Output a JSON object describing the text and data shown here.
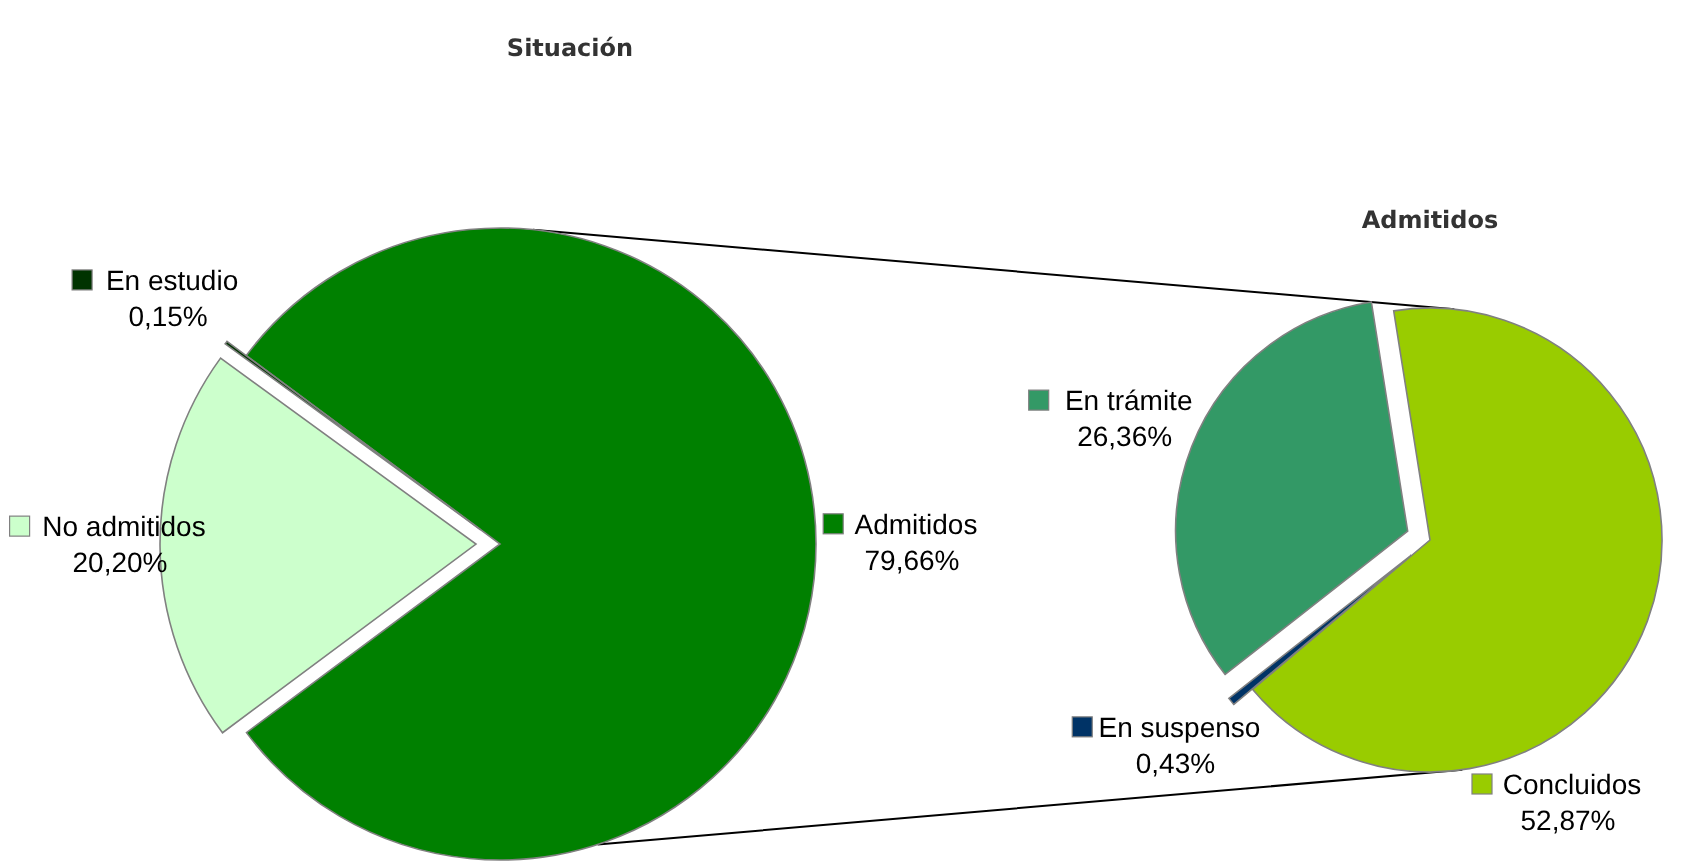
{
  "chart_data": [
    {
      "type": "pie",
      "title": "Situación",
      "categories": [
        "Admitidos",
        "No admitidos",
        "En estudio"
      ],
      "values": [
        79.66,
        20.2,
        0.15
      ],
      "colors": [
        "#008000",
        "#ccffcc",
        "#003300"
      ],
      "value_labels": [
        "79,66%",
        "20,20%",
        "0,15%"
      ],
      "legend": "left"
    },
    {
      "type": "pie",
      "title": "Admitidos",
      "categories": [
        "Concluidos",
        "En suspenso",
        "En trámite"
      ],
      "values": [
        52.87,
        0.43,
        26.36
      ],
      "colors": [
        "#99cc00",
        "#003366",
        "#339966"
      ],
      "value_labels": [
        "52,87%",
        "0,43%",
        "26,36%"
      ],
      "legend": "left"
    }
  ]
}
